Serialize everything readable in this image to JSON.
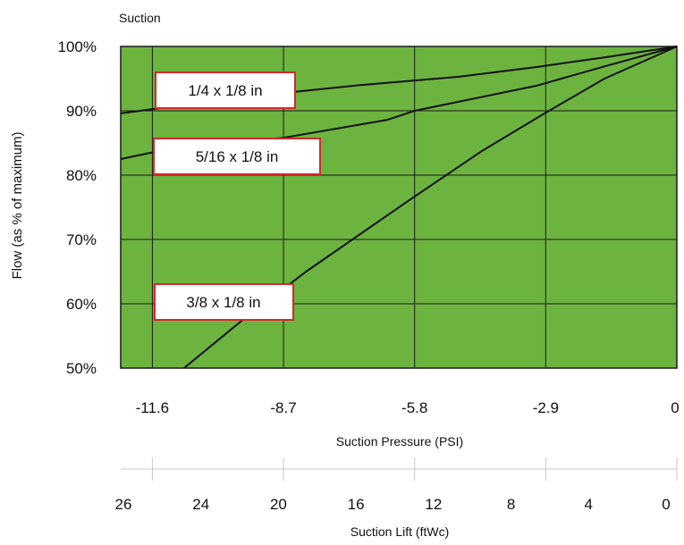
{
  "chart_data": {
    "type": "line",
    "title": "Suction",
    "xlabel": "Suction Pressure (PSI)",
    "ylabel": "Flow (as % of maximum)",
    "xlim": [
      -12.3,
      0
    ],
    "ylim": [
      50,
      100
    ],
    "x_ticks": [
      "-11.6",
      "-8.7",
      "-5.8",
      "-2.9",
      "0"
    ],
    "y_ticks": [
      "100%",
      "90%",
      "80%",
      "70%",
      "60%",
      "50%"
    ],
    "y_tick_values": [
      100,
      90,
      80,
      70,
      60,
      50
    ],
    "secondary_axis": {
      "label": "Suction Lift (ftWc)",
      "ticks": [
        "26",
        "24",
        "20",
        "16",
        "12",
        "8",
        "4",
        "0"
      ]
    },
    "grid": true,
    "series": [
      {
        "name": "1/4 x 1/8 in",
        "x": [
          -12.3,
          -9.5,
          -7.0,
          -4.8,
          -3.1,
          -1.6,
          0
        ],
        "y": [
          89.6,
          92.2,
          94.0,
          95.3,
          96.8,
          98.3,
          100
        ]
      },
      {
        "name": "5/16 x 1/8 in",
        "x": [
          -12.3,
          -11.0,
          -8.7,
          -6.4,
          -5.8,
          -3.1,
          -1.6,
          0
        ],
        "y": [
          82.5,
          84.4,
          85.8,
          88.6,
          90.0,
          93.9,
          96.9,
          100
        ]
      },
      {
        "name": "3/8 x 1/8 in",
        "x": [
          -10.9,
          -9.6,
          -8.2,
          -5.9,
          -4.3,
          -2.9,
          -1.6,
          0
        ],
        "y": [
          50.0,
          57.5,
          65.0,
          76.2,
          83.8,
          89.7,
          95.0,
          100
        ]
      }
    ],
    "annotations": [
      "1/4 x 1/8 in",
      "5/16 x 1/8 in",
      "3/8 x 1/8 in"
    ],
    "colors": {
      "plot_background": "#6db33f",
      "grid": "#1a1a1a",
      "line": "#111111",
      "label_border": "#d6282b",
      "label_fill": "#ffffff"
    }
  }
}
